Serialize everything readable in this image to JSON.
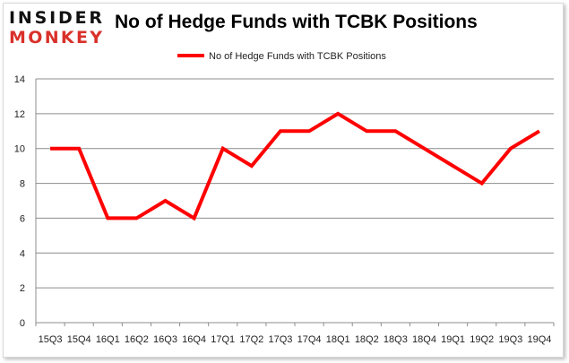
{
  "logo": {
    "line1": "INSIDER",
    "line2": "MONKEY"
  },
  "chart_data": {
    "type": "line",
    "title": "No of Hedge Funds with TCBK Positions",
    "categories": [
      "15Q3",
      "15Q4",
      "16Q1",
      "16Q2",
      "16Q3",
      "16Q4",
      "17Q1",
      "17Q2",
      "17Q3",
      "17Q4",
      "18Q1",
      "18Q2",
      "18Q3",
      "18Q4",
      "19Q1",
      "19Q2",
      "19Q3",
      "19Q4"
    ],
    "series": [
      {
        "name": "No of Hedge Funds with TCBK Positions",
        "values": [
          10,
          10,
          6,
          6,
          7,
          6,
          10,
          9,
          11,
          11,
          12,
          11,
          11,
          10,
          9,
          8,
          10,
          11
        ],
        "color": "#ff0000"
      }
    ],
    "ylim": [
      0,
      14
    ],
    "yticks": [
      0,
      2,
      4,
      6,
      8,
      10,
      12,
      14
    ],
    "grid": true,
    "legend": "top-center"
  }
}
